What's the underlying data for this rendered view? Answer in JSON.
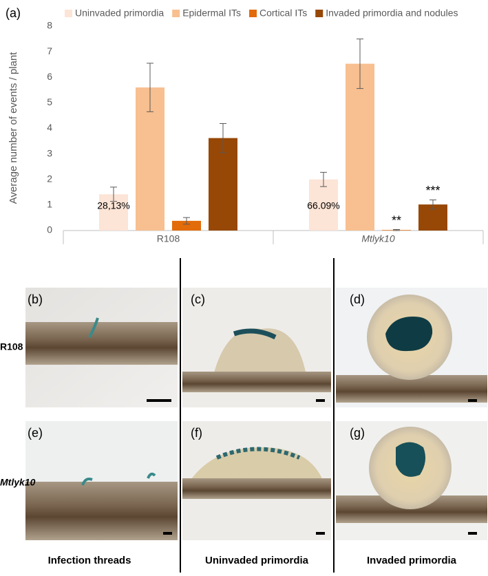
{
  "chart_data": {
    "type": "bar",
    "panel_label": "(a)",
    "ylabel": "Average number of events / plant",
    "categories": [
      "R108",
      "Mtlyk10"
    ],
    "series": [
      {
        "name": "Uninvaded primordia",
        "color": "#fce4d6",
        "values": [
          1.42,
          2.0
        ],
        "errors": [
          0.28,
          0.28
        ],
        "annotations": [
          "28,13%",
          "66.09%"
        ]
      },
      {
        "name": "Epidermal ITs",
        "color": "#f8bf90",
        "values": [
          5.6,
          6.53
        ],
        "errors": [
          0.95,
          0.97
        ]
      },
      {
        "name": "Cortical ITs",
        "color": "#e26b0a",
        "values": [
          0.38,
          0.02
        ],
        "errors": [
          0.13,
          0.02
        ],
        "annotations": [
          null,
          "**"
        ]
      },
      {
        "name": "Invaded primordia and nodules",
        "color": "#974706",
        "values": [
          3.62,
          1.02
        ],
        "errors": [
          0.57,
          0.18
        ],
        "annotations": [
          null,
          "***"
        ]
      }
    ],
    "ylim": [
      0,
      8
    ],
    "yticks": [
      0,
      1,
      2,
      3,
      4,
      5,
      6,
      7,
      8
    ],
    "grid": false
  },
  "images": {
    "panels": [
      "(b)",
      "(c)",
      "(d)",
      "(e)",
      "(f)",
      "(g)"
    ],
    "rows": [
      "R108",
      "Mtlyk10"
    ],
    "columns": [
      "Infection threads",
      "Uninvaded primordia",
      "Invaded primordia"
    ]
  }
}
